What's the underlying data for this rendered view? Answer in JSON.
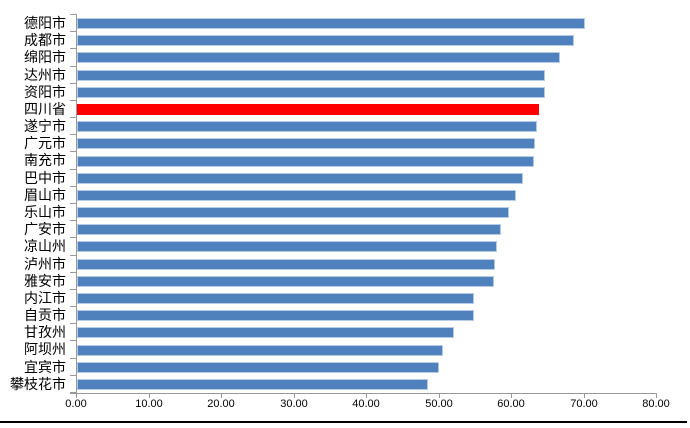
{
  "chart_data": {
    "type": "bar",
    "orientation": "horizontal",
    "title": "",
    "xlabel": "",
    "ylabel": "",
    "categories": [
      "德阳市",
      "成都市",
      "绵阳市",
      "达州市",
      "资阳市",
      "四川省",
      "遂宁市",
      "广元市",
      "南充市",
      "巴中市",
      "眉山市",
      "乐山市",
      "广安市",
      "凉山州",
      "泸州市",
      "雅安市",
      "内江市",
      "自贡市",
      "甘孜州",
      "阿坝州",
      "宜宾市",
      "攀枝花市"
    ],
    "values": [
      70.0,
      68.6,
      66.6,
      64.6,
      64.5,
      63.7,
      63.4,
      63.2,
      63.1,
      61.5,
      60.5,
      59.6,
      58.5,
      57.9,
      57.6,
      57.5,
      54.8,
      54.8,
      52.0,
      50.5,
      49.9,
      48.4
    ],
    "highlight_category": "四川省",
    "xlim": [
      0,
      80
    ],
    "x_tick_labels": [
      "0.00",
      "10.00",
      "20.00",
      "30.00",
      "40.00",
      "50.00",
      "60.00",
      "70.00",
      "80.00"
    ],
    "x_tick_values": [
      0,
      10,
      20,
      30,
      40,
      50,
      60,
      70,
      80
    ],
    "grid": false,
    "legend": false,
    "colors": {
      "bar_fill": "#4F81BD",
      "bar_border": "#B5CBE5",
      "highlight_fill": "#FF0000",
      "highlight_border": "#FF0000",
      "axis_line": "#9a9a9a",
      "text": "#000000",
      "bottom_border": "#000000"
    }
  }
}
